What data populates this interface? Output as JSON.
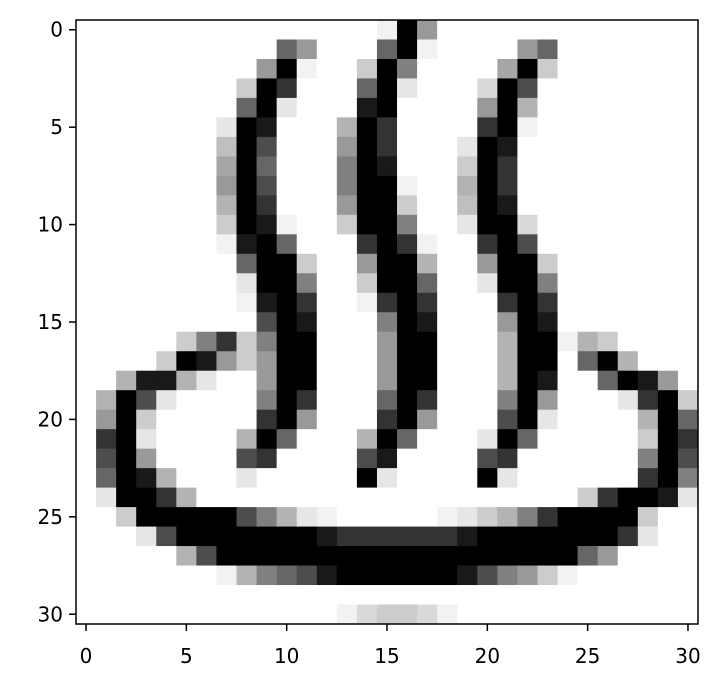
{
  "chart_data": {
    "type": "heatmap",
    "title": "",
    "xlabel": "",
    "ylabel": "",
    "colormap": "gray_r",
    "shape": [
      31,
      31
    ],
    "xlim": [
      -0.5,
      30.5
    ],
    "ylim": [
      30.5,
      -0.5
    ],
    "x_ticks": [
      0,
      5,
      10,
      15,
      20,
      25,
      30
    ],
    "y_ticks": [
      0,
      5,
      10,
      15,
      20,
      25,
      30
    ],
    "x_tick_labels": [
      "0",
      "5",
      "10",
      "15",
      "20",
      "25",
      "30"
    ],
    "y_tick_labels": [
      "0",
      "5",
      "10",
      "15",
      "20",
      "25",
      "30"
    ],
    "grid": false,
    "description_values": "Per-pixel intensity matrix estimated from the image; higher values are darker on the grayscale reversed colormap.",
    "values": [
      [
        0,
        0,
        0,
        0,
        0,
        0,
        0,
        0,
        0,
        0,
        0,
        0,
        0,
        0,
        0,
        0.05,
        1,
        0.4,
        0,
        0,
        0,
        0,
        0,
        0,
        0,
        0,
        0,
        0,
        0,
        0,
        0
      ],
      [
        0,
        0,
        0,
        0,
        0,
        0,
        0,
        0,
        0,
        0,
        0.6,
        0.4,
        0,
        0,
        0,
        0.6,
        1,
        0.05,
        0,
        0,
        0,
        0,
        0.4,
        0.6,
        0,
        0,
        0,
        0,
        0,
        0,
        0
      ],
      [
        0,
        0,
        0,
        0,
        0,
        0,
        0,
        0,
        0,
        0.4,
        1,
        0.05,
        0,
        0,
        0.2,
        1,
        0.5,
        0,
        0,
        0,
        0,
        0.35,
        1,
        0.2,
        0,
        0,
        0,
        0,
        0,
        0,
        0
      ],
      [
        0,
        0,
        0,
        0,
        0,
        0,
        0,
        0,
        0.2,
        1,
        0.8,
        0,
        0,
        0,
        0.6,
        1,
        0.1,
        0,
        0,
        0,
        0.15,
        1,
        0.7,
        0,
        0,
        0,
        0,
        0,
        0,
        0,
        0
      ],
      [
        0,
        0,
        0,
        0,
        0,
        0,
        0,
        0,
        0.6,
        1,
        0.1,
        0,
        0,
        0,
        0.9,
        1,
        0,
        0,
        0,
        0,
        0.4,
        1,
        0.3,
        0,
        0,
        0,
        0,
        0,
        0,
        0,
        0
      ],
      [
        0,
        0,
        0,
        0,
        0,
        0,
        0,
        0.1,
        1,
        0.9,
        0,
        0,
        0,
        0.3,
        1,
        0.8,
        0,
        0,
        0,
        0,
        0.8,
        1,
        0.05,
        0,
        0,
        0,
        0,
        0,
        0,
        0,
        0
      ],
      [
        0,
        0,
        0,
        0,
        0,
        0,
        0,
        0.25,
        1,
        0.7,
        0,
        0,
        0,
        0.4,
        1,
        0.8,
        0,
        0,
        0,
        0.1,
        1,
        0.9,
        0,
        0,
        0,
        0,
        0,
        0,
        0,
        0,
        0
      ],
      [
        0,
        0,
        0,
        0,
        0,
        0,
        0,
        0.35,
        1,
        0.6,
        0,
        0,
        0,
        0.5,
        1,
        0.9,
        0,
        0,
        0,
        0.2,
        1,
        0.8,
        0,
        0,
        0,
        0,
        0,
        0,
        0,
        0,
        0
      ],
      [
        0,
        0,
        0,
        0,
        0,
        0,
        0,
        0.4,
        1,
        0.7,
        0,
        0,
        0,
        0.5,
        1,
        1,
        0.05,
        0,
        0,
        0.3,
        1,
        0.8,
        0,
        0,
        0,
        0,
        0,
        0,
        0,
        0,
        0
      ],
      [
        0,
        0,
        0,
        0,
        0,
        0,
        0,
        0.3,
        1,
        0.8,
        0,
        0,
        0,
        0.4,
        1,
        1,
        0.2,
        0,
        0,
        0.25,
        1,
        0.9,
        0,
        0,
        0,
        0,
        0,
        0,
        0,
        0,
        0
      ],
      [
        0,
        0,
        0,
        0,
        0,
        0,
        0,
        0.2,
        1,
        0.9,
        0.05,
        0,
        0,
        0.2,
        1,
        1,
        0.5,
        0,
        0,
        0.1,
        1,
        1,
        0.15,
        0,
        0,
        0,
        0,
        0,
        0,
        0,
        0
      ],
      [
        0,
        0,
        0,
        0,
        0,
        0,
        0,
        0.05,
        0.9,
        1,
        0.6,
        0,
        0,
        0,
        0.8,
        1,
        0.8,
        0.05,
        0,
        0,
        0.8,
        1,
        0.7,
        0,
        0,
        0,
        0,
        0,
        0,
        0,
        0
      ],
      [
        0,
        0,
        0,
        0,
        0,
        0,
        0,
        0,
        0.6,
        1,
        1,
        0.2,
        0,
        0,
        0.4,
        1,
        1,
        0.3,
        0,
        0,
        0.4,
        1,
        1,
        0.2,
        0,
        0,
        0,
        0,
        0,
        0,
        0
      ],
      [
        0,
        0,
        0,
        0,
        0,
        0,
        0,
        0,
        0.1,
        1,
        1,
        0.5,
        0,
        0,
        0.2,
        1,
        1,
        0.6,
        0,
        0,
        0.1,
        1,
        1,
        0.5,
        0,
        0,
        0,
        0,
        0,
        0,
        0
      ],
      [
        0,
        0,
        0,
        0,
        0,
        0,
        0,
        0,
        0.05,
        0.9,
        1,
        0.8,
        0,
        0,
        0.05,
        0.8,
        1,
        0.8,
        0,
        0,
        0,
        0.8,
        1,
        0.8,
        0,
        0,
        0,
        0,
        0,
        0,
        0
      ],
      [
        0,
        0,
        0,
        0,
        0,
        0,
        0,
        0,
        0,
        0.7,
        1,
        0.9,
        0,
        0,
        0,
        0.5,
        1,
        0.9,
        0,
        0,
        0,
        0.4,
        1,
        0.9,
        0,
        0,
        0,
        0,
        0,
        0,
        0
      ],
      [
        0,
        0,
        0,
        0,
        0,
        0.2,
        0.5,
        0.8,
        0.2,
        0.5,
        1,
        1,
        0,
        0,
        0,
        0.4,
        1,
        1,
        0,
        0,
        0,
        0.3,
        1,
        1,
        0.05,
        0.3,
        0.2,
        0,
        0,
        0,
        0
      ],
      [
        0,
        0,
        0,
        0,
        0.2,
        1,
        0.9,
        0.4,
        0.2,
        0.4,
        1,
        1,
        0,
        0,
        0,
        0.4,
        1,
        1,
        0,
        0,
        0,
        0.3,
        1,
        1,
        0,
        0.6,
        1,
        0.3,
        0,
        0,
        0
      ],
      [
        0,
        0,
        0.3,
        0.9,
        0.9,
        0.3,
        0.1,
        0,
        0,
        0.4,
        1,
        1,
        0,
        0,
        0,
        0.4,
        1,
        1,
        0,
        0,
        0,
        0.3,
        1,
        0.9,
        0,
        0,
        0.6,
        1,
        0.9,
        0.4,
        0
      ],
      [
        0,
        0.3,
        1,
        0.7,
        0.1,
        0,
        0,
        0,
        0,
        0.5,
        1,
        0.8,
        0,
        0,
        0,
        0.6,
        1,
        0.8,
        0,
        0,
        0,
        0.5,
        1,
        0.4,
        0,
        0,
        0,
        0.1,
        0.8,
        1,
        0.2
      ],
      [
        0,
        0.4,
        1,
        0.2,
        0,
        0,
        0,
        0,
        0,
        0.8,
        1,
        0.4,
        0,
        0,
        0,
        0.8,
        1,
        0.4,
        0,
        0,
        0,
        0.7,
        1,
        0.1,
        0,
        0,
        0,
        0,
        0.3,
        1,
        0.6
      ],
      [
        0,
        0.8,
        1,
        0.1,
        0,
        0,
        0,
        0,
        0.3,
        1,
        0.6,
        0,
        0,
        0,
        0.3,
        1,
        0.6,
        0,
        0,
        0,
        0.1,
        1,
        0.6,
        0,
        0,
        0,
        0,
        0,
        0.2,
        1,
        0.8
      ],
      [
        0,
        0.7,
        1,
        0.4,
        0,
        0,
        0,
        0,
        0.7,
        0.8,
        0,
        0,
        0,
        0,
        0.7,
        0.9,
        0,
        0,
        0,
        0,
        0.7,
        0.8,
        0,
        0,
        0,
        0,
        0,
        0,
        0.5,
        1,
        0.7
      ],
      [
        0,
        0.6,
        1,
        0.9,
        0.3,
        0,
        0,
        0,
        0.1,
        0,
        0,
        0,
        0,
        0,
        1,
        0.1,
        0,
        0,
        0,
        0,
        1,
        0.1,
        0,
        0,
        0,
        0,
        0,
        0,
        0.8,
        1,
        0.5
      ],
      [
        0,
        0.1,
        1,
        1,
        0.8,
        0.3,
        0,
        0,
        0,
        0,
        0,
        0,
        0,
        0,
        0,
        0,
        0,
        0,
        0,
        0,
        0,
        0,
        0,
        0,
        0,
        0.2,
        0.8,
        1,
        1,
        0.9,
        0.1
      ],
      [
        0,
        0,
        0.2,
        1,
        1,
        1,
        1,
        1,
        0.7,
        0.5,
        0.3,
        0.1,
        0.05,
        0,
        0,
        0,
        0,
        0,
        0.05,
        0.1,
        0.2,
        0.3,
        0.5,
        0.8,
        1,
        1,
        1,
        1,
        0.2,
        0,
        0
      ],
      [
        0,
        0,
        0,
        0.1,
        0.7,
        1,
        1,
        1,
        1,
        1,
        1,
        1,
        0.9,
        0.8,
        0.8,
        0.8,
        0.8,
        0.8,
        0.8,
        0.9,
        1,
        1,
        1,
        1,
        1,
        1,
        1,
        0.8,
        0.1,
        0,
        0
      ],
      [
        0,
        0,
        0,
        0,
        0,
        0.3,
        0.7,
        1,
        1,
        1,
        1,
        1,
        1,
        1,
        1,
        1,
        1,
        1,
        1,
        1,
        1,
        1,
        1,
        1,
        1,
        0.6,
        0.4,
        0,
        0,
        0,
        0
      ],
      [
        0,
        0,
        0,
        0,
        0,
        0,
        0,
        0.05,
        0.3,
        0.5,
        0.6,
        0.7,
        0.9,
        1,
        1,
        1,
        1,
        1,
        1,
        0.9,
        0.7,
        0.5,
        0.4,
        0.2,
        0.05,
        0,
        0,
        0,
        0,
        0,
        0
      ],
      [
        0,
        0,
        0,
        0,
        0,
        0,
        0,
        0,
        0,
        0,
        0,
        0,
        0,
        0,
        0,
        0,
        0,
        0,
        0,
        0,
        0,
        0,
        0,
        0,
        0,
        0,
        0,
        0,
        0,
        0,
        0
      ],
      [
        0,
        0,
        0,
        0,
        0,
        0,
        0,
        0,
        0,
        0,
        0,
        0,
        0,
        0.05,
        0.15,
        0.2,
        0.2,
        0.15,
        0.05,
        0,
        0,
        0,
        0,
        0,
        0,
        0,
        0,
        0,
        0,
        0,
        0
      ]
    ]
  }
}
